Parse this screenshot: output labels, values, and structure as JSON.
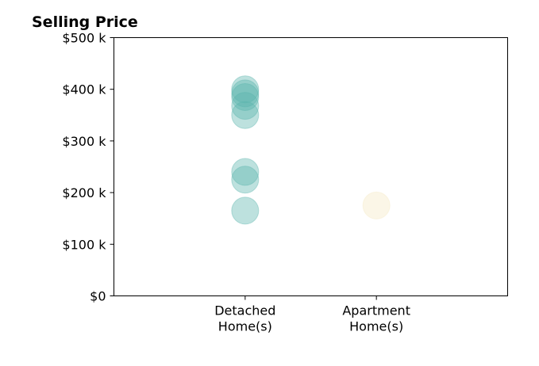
{
  "chart_data": {
    "type": "scatter",
    "title": "Selling Price",
    "xlabel": "",
    "ylabel": "",
    "categories": [
      "Detached\nHome(s)",
      "Apartment\nHome(s)"
    ],
    "x_range": [
      -1,
      2
    ],
    "y_ticks": [
      0,
      100000,
      200000,
      300000,
      400000,
      500000
    ],
    "y_tick_labels": [
      "$0",
      "$100 k",
      "$200 k",
      "$300 k",
      "$400 k",
      "$500 k"
    ],
    "ylim": [
      0,
      500000
    ],
    "grid": false,
    "series": [
      {
        "category": "Detached\nHome(s)",
        "color": "#5ab4ac",
        "values": [
          400000,
          392000,
          385000,
          368000,
          350000,
          240000,
          225000,
          165000
        ]
      },
      {
        "category": "Apartment\nHome(s)",
        "color": "#f6e8c3",
        "values": [
          175000
        ]
      }
    ]
  }
}
